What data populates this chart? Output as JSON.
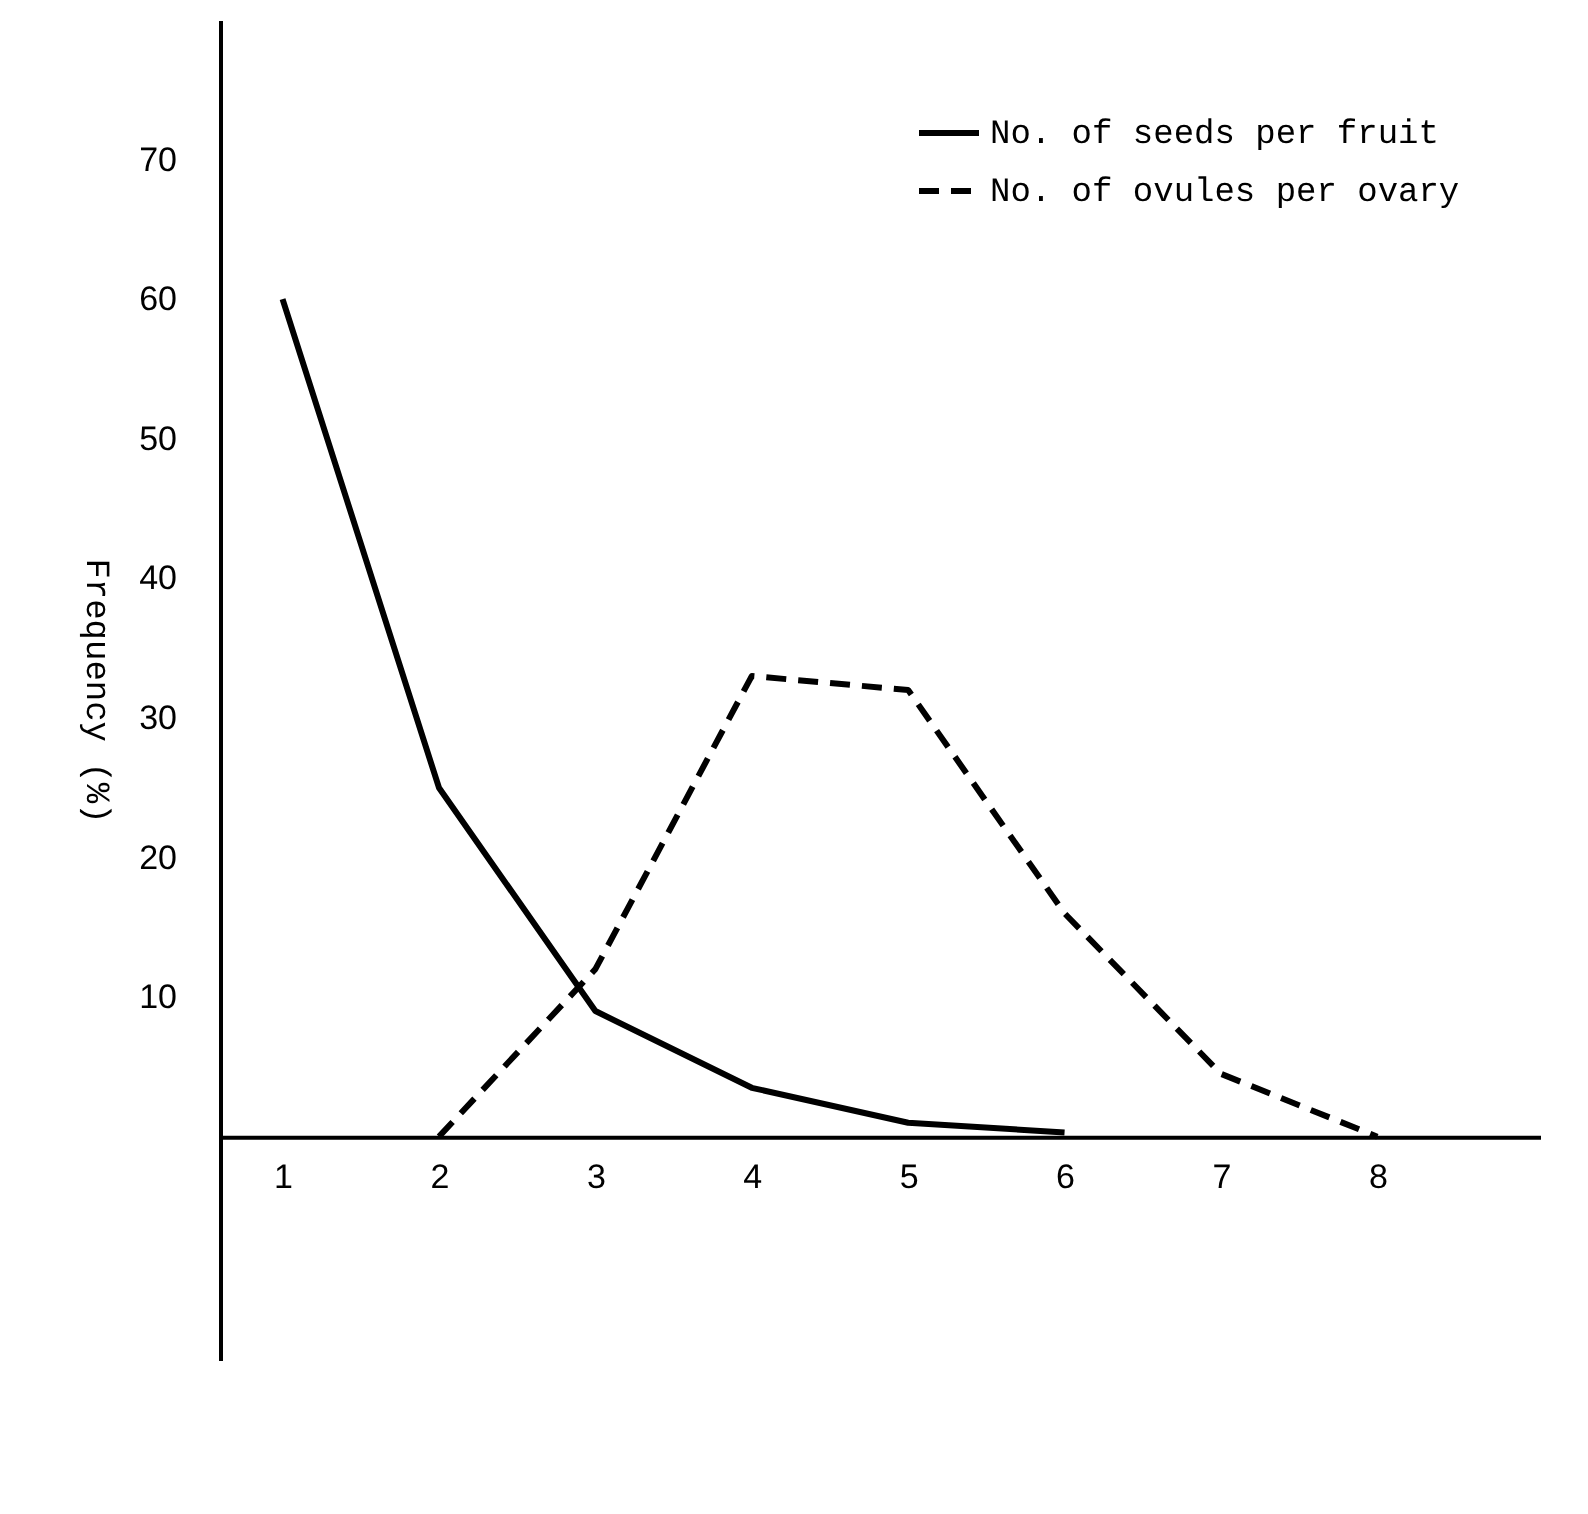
{
  "chart_data": {
    "type": "line",
    "ylabel": "Frequency (%)",
    "series": [
      {
        "name": "No. of seeds per fruit",
        "color": "#000000",
        "line_style": "solid",
        "x": [
          1,
          2,
          3,
          4,
          5,
          6
        ],
        "values": [
          60,
          25,
          9,
          3.5,
          1,
          0.3
        ]
      },
      {
        "name": "No. of ovules per ovary",
        "color": "#000000",
        "line_style": "dashed",
        "x": [
          2,
          3,
          4,
          5,
          6,
          7,
          8
        ],
        "values": [
          0,
          12,
          33,
          32,
          16,
          4.5,
          0
        ]
      }
    ],
    "xlim": [
      0.6,
      9.04
    ],
    "ylim": [
      -16,
      80
    ],
    "xticks": [
      1,
      2,
      3,
      4,
      5,
      6,
      7,
      8
    ],
    "yticks": [
      10,
      20,
      30,
      40,
      50,
      60,
      70
    ],
    "grid": false,
    "legend": "top right",
    "marker": "none"
  }
}
